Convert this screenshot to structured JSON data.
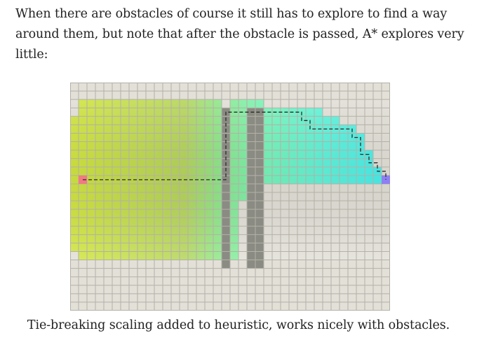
{
  "intro_text": "When there are obstacles of course it still has to explore to find a way around them, but note that after the obstacle is passed, A* explores very little:",
  "caption": "Tie-breaking scaling added to heuristic, works nicely with obstacles.",
  "grid": {
    "cols": 38,
    "rows": 27,
    "empty_color": "#e2e0d7",
    "line_color": "#b3b1a8",
    "wall_color": "#8a8b82",
    "start_color": "#f07a82",
    "goal_color": "#8e7ff2",
    "path_color": "#2a2a2a",
    "start_cell": [
      1,
      11
    ],
    "goal_cell": [
      37,
      11
    ],
    "walls": [
      {
        "col_start": 18,
        "col_end": 18,
        "row_start": 3,
        "row_end": 21
      },
      {
        "col_start": 21,
        "col_end": 22,
        "row_start": 3,
        "row_end": 21
      }
    ],
    "explored_runs": [
      [
        1,
        2,
        18,
        22
      ],
      [
        1,
        3,
        18,
        29
      ],
      [
        0,
        4,
        18,
        31
      ],
      [
        0,
        5,
        18,
        33
      ],
      [
        0,
        6,
        18,
        34
      ],
      [
        0,
        7,
        18,
        34
      ],
      [
        0,
        8,
        18,
        35
      ],
      [
        0,
        9,
        18,
        35
      ],
      [
        0,
        10,
        18,
        36
      ],
      [
        0,
        11,
        18,
        37
      ],
      [
        0,
        12,
        18,
        20
      ],
      [
        0,
        13,
        18,
        20
      ],
      [
        0,
        14,
        18,
        19
      ],
      [
        0,
        15,
        18,
        19
      ],
      [
        0,
        16,
        18,
        19
      ],
      [
        0,
        17,
        18,
        19
      ],
      [
        0,
        18,
        18,
        19
      ],
      [
        0,
        19,
        18,
        19
      ],
      [
        1,
        20,
        18,
        19
      ]
    ],
    "path": [
      [
        1,
        11
      ],
      [
        18,
        11
      ],
      [
        18,
        3
      ],
      [
        27,
        3
      ],
      [
        27,
        4
      ],
      [
        28,
        4
      ],
      [
        28,
        5
      ],
      [
        33,
        5
      ],
      [
        33,
        6
      ],
      [
        34,
        6
      ],
      [
        34,
        8
      ],
      [
        35,
        8
      ],
      [
        35,
        9
      ],
      [
        36,
        9
      ],
      [
        36,
        10
      ],
      [
        37,
        10
      ],
      [
        37,
        11
      ]
    ]
  }
}
